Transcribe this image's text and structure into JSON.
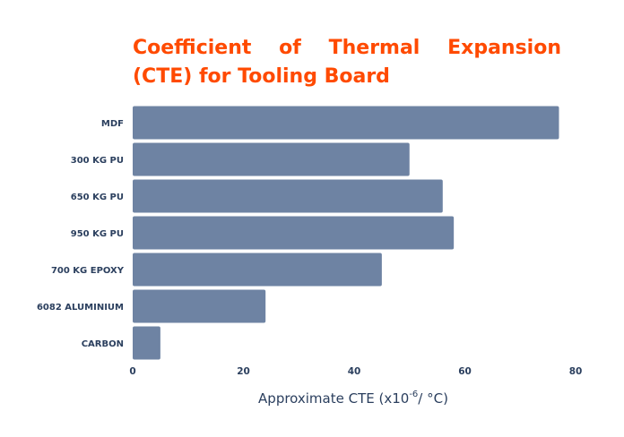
{
  "chart_data": {
    "type": "bar",
    "orientation": "horizontal",
    "title": "Coefficient of Thermal Expansion (CTE) for Tooling Board",
    "xlabel": {
      "prefix": "Approximate CTE (x10",
      "superscript": "-6",
      "suffix": "/ °C)"
    },
    "categories": [
      "MDF",
      "300 KG PU",
      "650 KG PU",
      "950 KG PU",
      "700 KG EPOXY",
      "6082 ALUMINIUM",
      "CARBON"
    ],
    "values": [
      77,
      50,
      56,
      58,
      45,
      24,
      5
    ],
    "xlim": [
      0,
      80
    ],
    "xticks": [
      "0",
      "20",
      "40",
      "60",
      "80"
    ],
    "grid": false,
    "legend": "none",
    "bar_color": "#6e83a3",
    "title_color": "#ff4a00",
    "label_color": "#2b3f5e"
  }
}
